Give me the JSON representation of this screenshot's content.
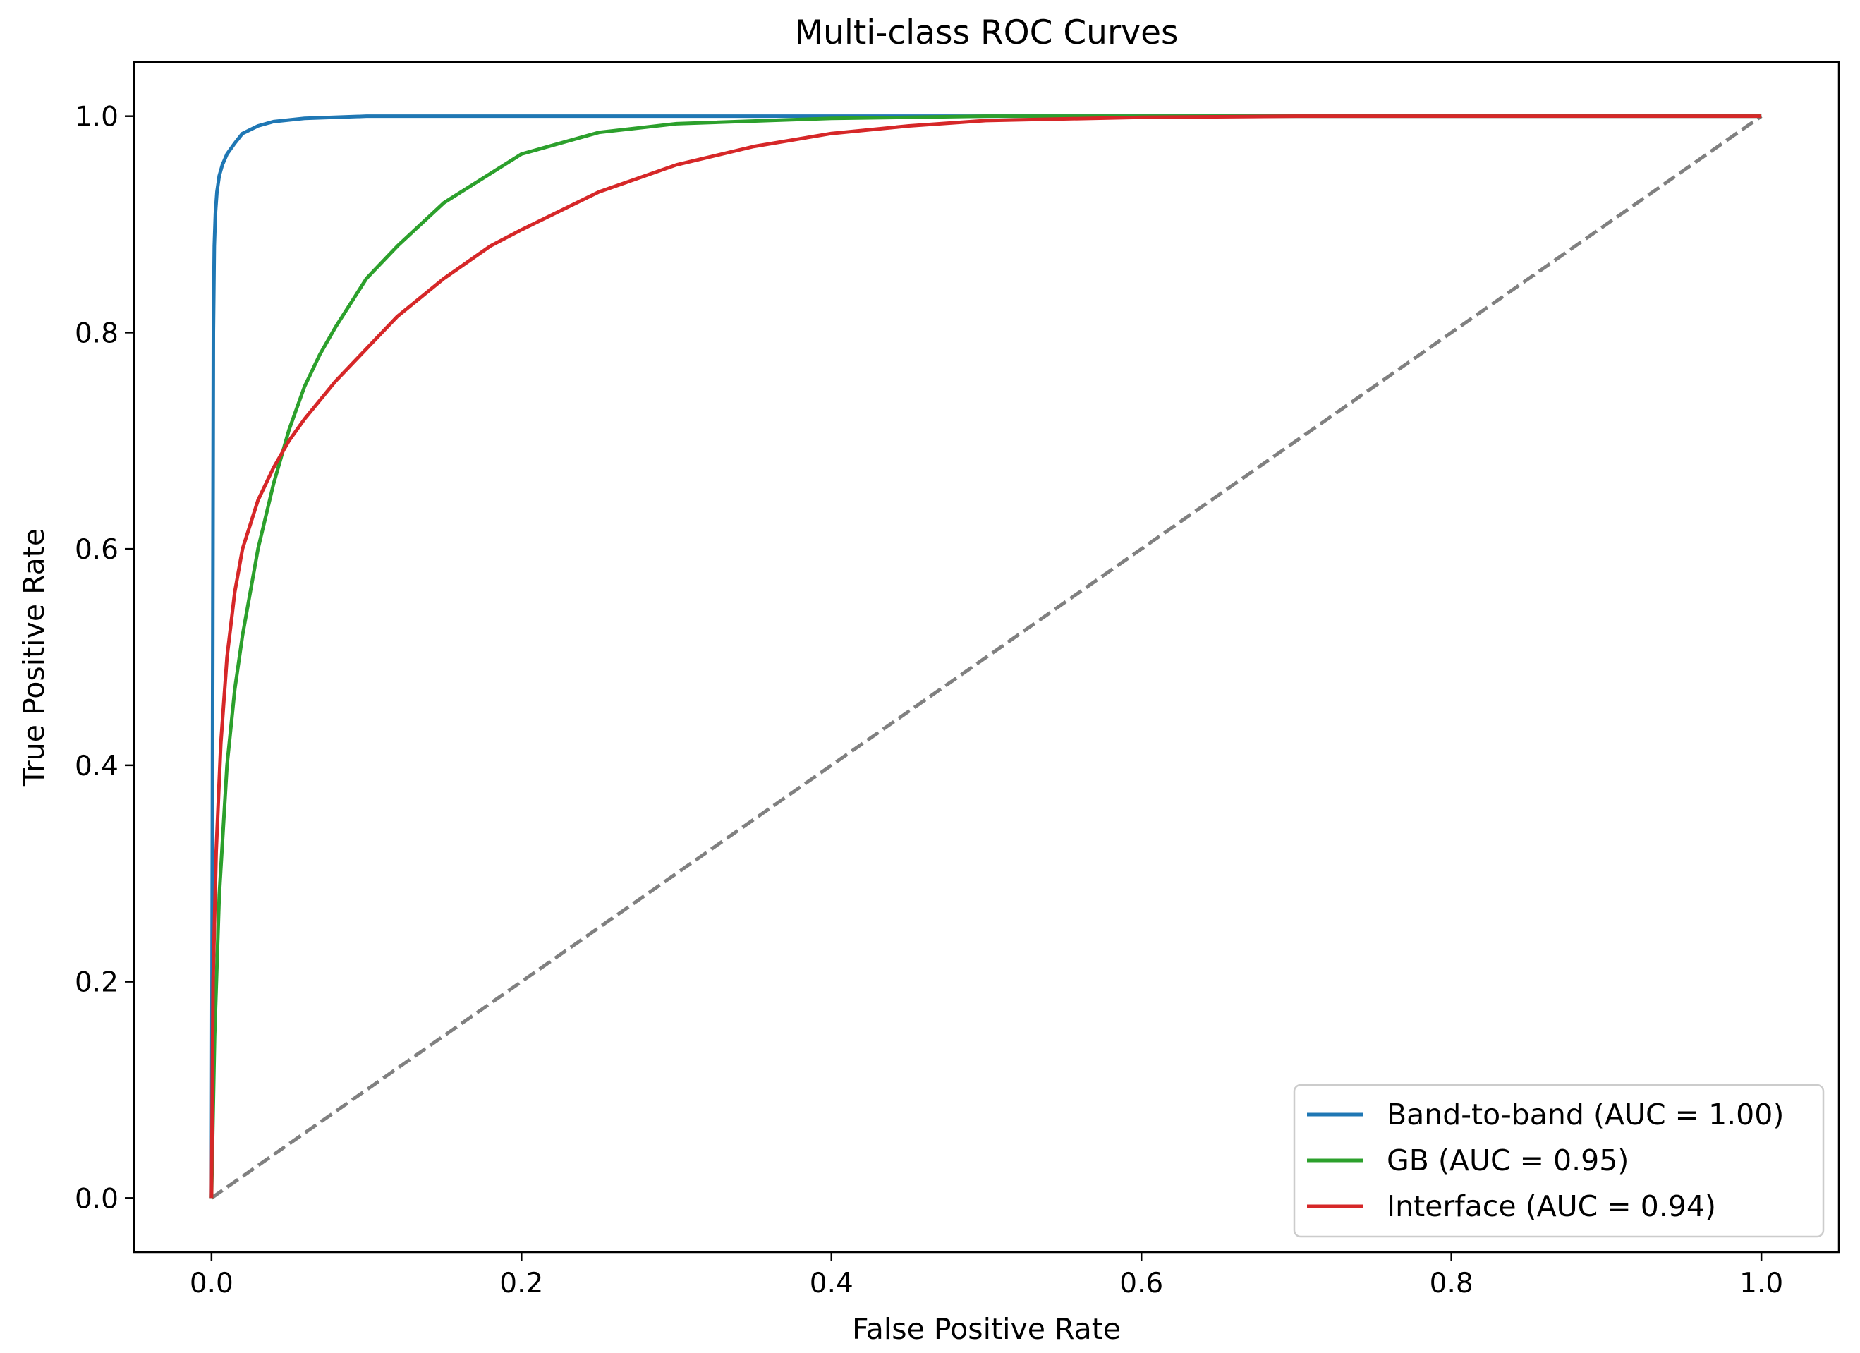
{
  "chart_data": {
    "type": "line",
    "title": "Multi-class ROC Curves",
    "xlabel": "False Positive Rate",
    "ylabel": "True Positive Rate",
    "xlim": [
      -0.05,
      1.05
    ],
    "ylim": [
      -0.05,
      1.05
    ],
    "x_ticks": [
      0.0,
      0.2,
      0.4,
      0.6,
      0.8,
      1.0
    ],
    "y_ticks": [
      0.0,
      0.2,
      0.4,
      0.6,
      0.8,
      1.0
    ],
    "x_tick_labels": [
      "0.0",
      "0.2",
      "0.4",
      "0.6",
      "0.8",
      "1.0"
    ],
    "y_tick_labels": [
      "0.0",
      "0.2",
      "0.4",
      "0.6",
      "0.8",
      "1.0"
    ],
    "grid": false,
    "legend_position": "lower right",
    "series": [
      {
        "name": "Band-to-band (AUC = 1.00)",
        "color": "#1f77b4",
        "style": "solid",
        "x": [
          0.0,
          0.0008,
          0.0012,
          0.0018,
          0.0025,
          0.0035,
          0.005,
          0.007,
          0.01,
          0.015,
          0.02,
          0.03,
          0.04,
          0.06,
          0.1,
          0.2,
          0.4,
          0.6,
          1.0
        ],
        "y": [
          0.0,
          0.5,
          0.8,
          0.88,
          0.91,
          0.93,
          0.945,
          0.955,
          0.965,
          0.975,
          0.984,
          0.991,
          0.995,
          0.998,
          1.0,
          1.0,
          1.0,
          1.0,
          1.0
        ]
      },
      {
        "name": "GB (AUC = 0.95)",
        "color": "#2ca02c",
        "style": "solid",
        "x": [
          0.0,
          0.002,
          0.005,
          0.01,
          0.015,
          0.02,
          0.03,
          0.04,
          0.05,
          0.06,
          0.07,
          0.08,
          0.1,
          0.12,
          0.15,
          0.2,
          0.25,
          0.3,
          0.4,
          0.5,
          0.6,
          0.7,
          1.0
        ],
        "y": [
          0.0,
          0.15,
          0.28,
          0.4,
          0.47,
          0.52,
          0.6,
          0.66,
          0.71,
          0.75,
          0.78,
          0.805,
          0.85,
          0.88,
          0.92,
          0.965,
          0.985,
          0.993,
          0.998,
          1.0,
          1.0,
          1.0,
          1.0
        ]
      },
      {
        "name": "Interface (AUC = 0.94)",
        "color": "#d62728",
        "style": "solid",
        "x": [
          0.0,
          0.001,
          0.003,
          0.006,
          0.01,
          0.015,
          0.02,
          0.03,
          0.04,
          0.05,
          0.06,
          0.08,
          0.1,
          0.12,
          0.15,
          0.18,
          0.2,
          0.25,
          0.3,
          0.35,
          0.4,
          0.45,
          0.5,
          0.6,
          0.7,
          0.8,
          1.0
        ],
        "y": [
          0.0,
          0.2,
          0.32,
          0.42,
          0.5,
          0.56,
          0.6,
          0.645,
          0.675,
          0.7,
          0.72,
          0.755,
          0.785,
          0.815,
          0.85,
          0.88,
          0.895,
          0.93,
          0.955,
          0.972,
          0.984,
          0.991,
          0.996,
          0.999,
          1.0,
          1.0,
          1.0
        ]
      },
      {
        "name": "",
        "color": "#808080",
        "style": "dashed",
        "x": [
          0.0,
          1.0
        ],
        "y": [
          0.0,
          1.0
        ]
      }
    ]
  }
}
